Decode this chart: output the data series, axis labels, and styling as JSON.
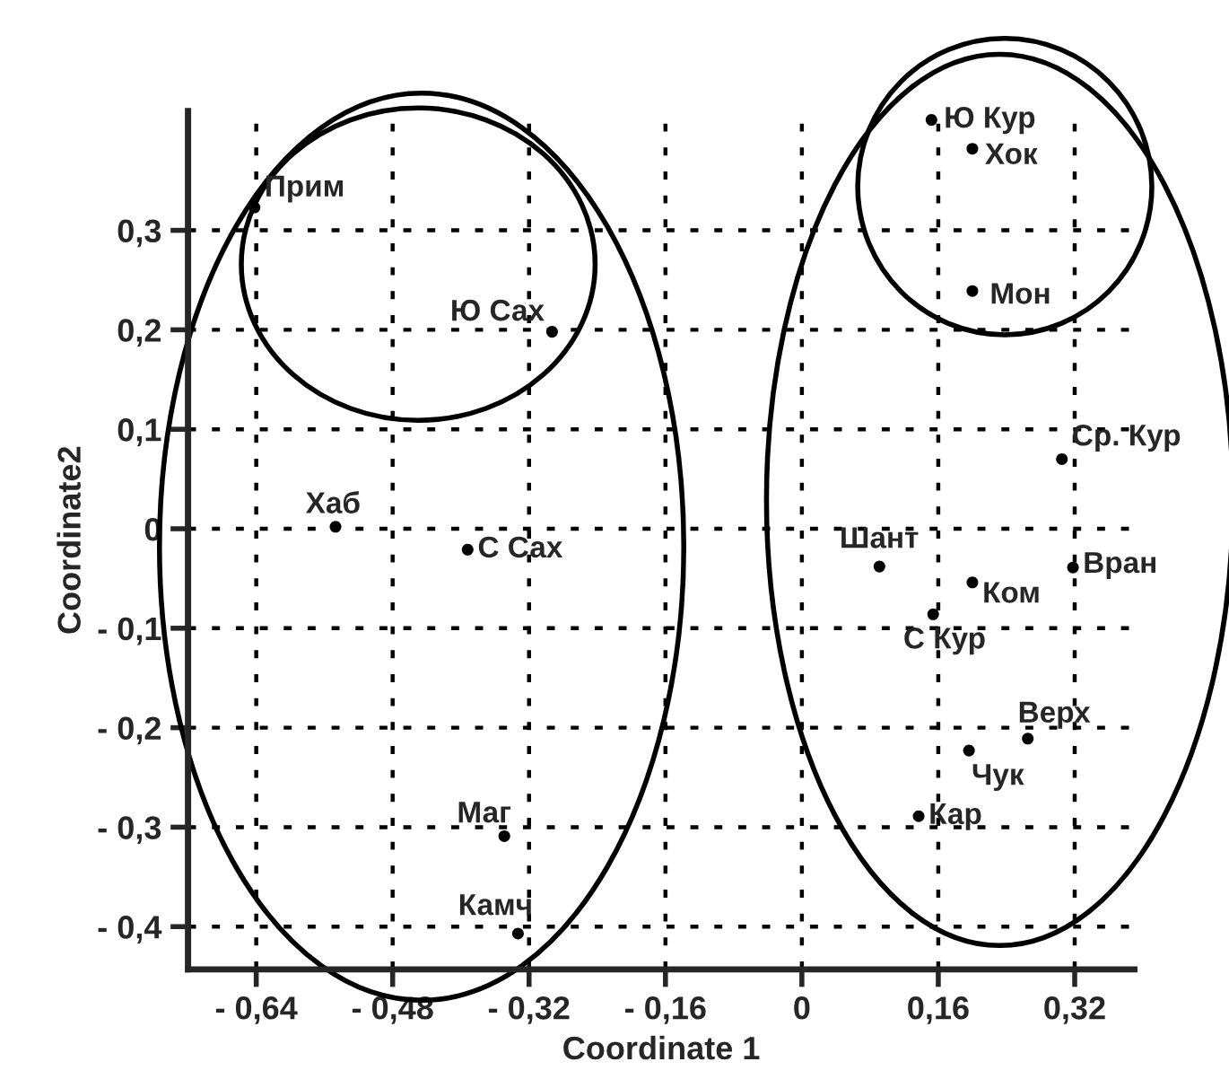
{
  "chart_data": {
    "type": "scatter",
    "xlabel": "Coordinate 1",
    "ylabel": "Coordinate2",
    "x": [
      -0.642,
      -0.293,
      -0.547,
      -0.392,
      -0.349,
      -0.333,
      0.152,
      0.2,
      0.2,
      0.305,
      0.091,
      0.318,
      0.2,
      0.154,
      0.265,
      0.196,
      0.137
    ],
    "values": [
      0.323,
      0.198,
      0.002,
      -0.021,
      -0.309,
      -0.407,
      0.411,
      0.382,
      0.239,
      0.07,
      -0.038,
      -0.039,
      -0.054,
      -0.086,
      -0.211,
      -0.223,
      -0.289
    ],
    "color": "#000000",
    "marker": "circle",
    "grid": true,
    "xlim": [
      -0.72,
      0.39
    ],
    "ylim": [
      -0.443,
      0.42
    ],
    "xticks": [
      {
        "value": -0.64,
        "label": "- 0,64"
      },
      {
        "value": -0.48,
        "label": "- 0,48"
      },
      {
        "value": -0.32,
        "label": "- 0,32"
      },
      {
        "value": -0.16,
        "label": "- 0,16"
      },
      0,
      {
        "value": 0.16,
        "label": "0,16"
      },
      {
        "value": 0.32,
        "label": "0,32"
      }
    ],
    "yticks": [
      {
        "value": -0.4,
        "label": "- 0,4"
      },
      {
        "value": -0.3,
        "label": "- 0,3"
      },
      {
        "value": -0.2,
        "label": "- 0,2"
      },
      {
        "value": -0.1,
        "label": "- 0,1"
      },
      0,
      {
        "value": 0.1,
        "label": "0,1"
      },
      {
        "value": 0.2,
        "label": "0,2"
      },
      {
        "value": 0.3,
        "label": "0,3"
      }
    ],
    "annotations": [
      {
        "text": "Прим",
        "x": -0.642,
        "y": 0.323
      },
      {
        "text": "Ю Сах",
        "x": -0.293,
        "y": 0.198
      },
      {
        "text": "Хаб",
        "x": -0.547,
        "y": 0.002
      },
      {
        "text": "С Сах",
        "x": -0.392,
        "y": -0.021
      },
      {
        "text": "Маг",
        "x": -0.349,
        "y": -0.309
      },
      {
        "text": "Камч",
        "x": -0.333,
        "y": -0.407
      },
      {
        "text": "Ю Кур",
        "x": 0.152,
        "y": 0.411
      },
      {
        "text": "Хок",
        "x": 0.2,
        "y": 0.382
      },
      {
        "text": "Мон",
        "x": 0.2,
        "y": 0.239
      },
      {
        "text": "Ср. Кур",
        "x": 0.305,
        "y": 0.07
      },
      {
        "text": "Шант",
        "x": 0.091,
        "y": -0.038
      },
      {
        "text": "Вран",
        "x": 0.318,
        "y": -0.039
      },
      {
        "text": "Ком",
        "x": 0.2,
        "y": -0.054
      },
      {
        "text": "С Кур",
        "x": 0.154,
        "y": -0.086
      },
      {
        "text": "Верх",
        "x": 0.265,
        "y": -0.211
      },
      {
        "text": "Чук",
        "x": 0.196,
        "y": -0.223
      },
      {
        "text": "Кар",
        "x": 0.137,
        "y": -0.289
      }
    ]
  }
}
